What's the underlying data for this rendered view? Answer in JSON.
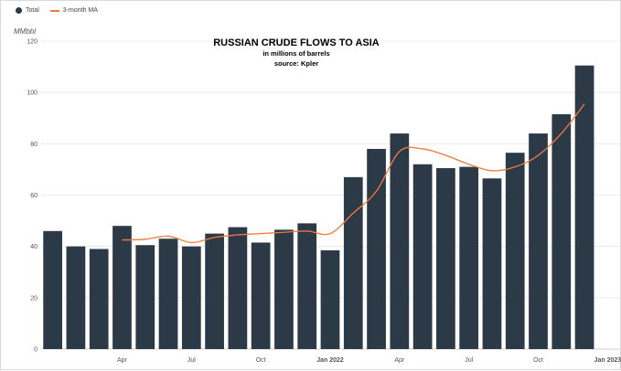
{
  "legend": {
    "items": [
      {
        "label": "Total",
        "color": "#2c3a47",
        "kind": "dot"
      },
      {
        "label": "3-month MA",
        "color": "#f07a3a",
        "kind": "line"
      }
    ]
  },
  "chart_data": {
    "type": "bar",
    "title": "RUSSIAN CRUDE FLOWS TO ASIA",
    "subtitle": "in millions of barrels",
    "source": "source: Kpler",
    "ylabel": "MMbbl",
    "ylim": [
      0,
      120
    ],
    "yticks": [
      0,
      20,
      40,
      60,
      80,
      100,
      120
    ],
    "grid": true,
    "legend_position": "top-left",
    "bar_color": "#2c3a47",
    "line_color": "#f07a3a",
    "categories": [
      "Jan 2021",
      "Feb 2021",
      "Mar 2021",
      "Apr 2021",
      "May 2021",
      "Jun 2021",
      "Jul 2021",
      "Aug 2021",
      "Sep 2021",
      "Oct 2021",
      "Nov 2021",
      "Dec 2021",
      "Jan 2022",
      "Feb 2022",
      "Mar 2022",
      "Apr 2022",
      "May 2022",
      "Jun 2022",
      "Jul 2022",
      "Aug 2022",
      "Sep 2022",
      "Oct 2022",
      "Nov 2022",
      "Dec 2022",
      "Jan 2023"
    ],
    "x_tick_labels": [
      {
        "index": 3,
        "label": "Apr",
        "bold": false
      },
      {
        "index": 6,
        "label": "Jul",
        "bold": false
      },
      {
        "index": 9,
        "label": "Oct",
        "bold": false
      },
      {
        "index": 12,
        "label": "Jan 2022",
        "bold": true
      },
      {
        "index": 15,
        "label": "Apr",
        "bold": false
      },
      {
        "index": 18,
        "label": "Jul",
        "bold": false
      },
      {
        "index": 21,
        "label": "Oct",
        "bold": false
      },
      {
        "index": 24,
        "label": "Jan 2023",
        "bold": true
      }
    ],
    "series": [
      {
        "name": "Total",
        "type": "bar",
        "values": [
          46,
          40,
          39,
          48,
          40.5,
          43,
          40,
          45,
          47.5,
          41.5,
          46.5,
          49,
          38.5,
          67,
          78,
          84,
          72,
          70.5,
          71,
          66.5,
          76.5,
          84,
          91.5,
          110.5,
          null
        ]
      },
      {
        "name": "3-month MA",
        "type": "line",
        "values": [
          null,
          null,
          null,
          42.5,
          42.8,
          44,
          41.5,
          43.5,
          44.5,
          45,
          45.5,
          46,
          45,
          53,
          61.5,
          77,
          78,
          75.5,
          72,
          69.5,
          71,
          75.5,
          84,
          95.5,
          null
        ]
      }
    ]
  }
}
